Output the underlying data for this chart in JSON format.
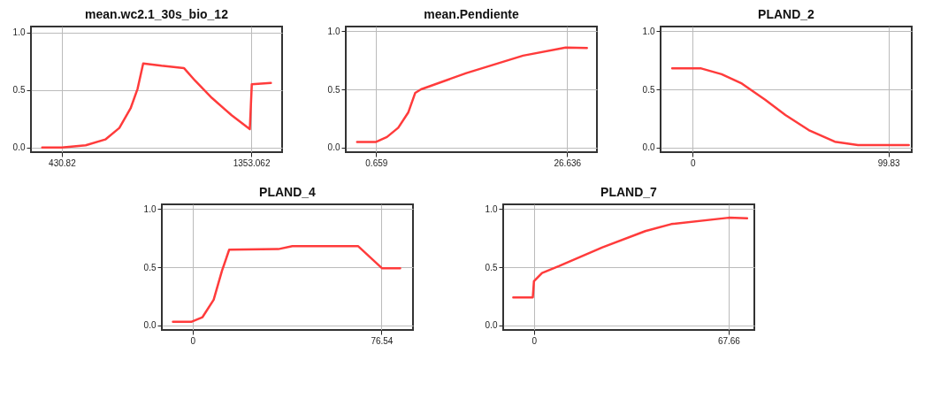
{
  "chart_data": [
    {
      "type": "line",
      "title": "mean.wc2.1_30s_bio_12",
      "x": [
        335.2,
        430.8,
        546.9,
        642.6,
        710.9,
        765.6,
        799.7,
        827.0,
        915.9,
        1025.2,
        1079.8,
        1161.8,
        1257.4,
        1346.2,
        1355.8,
        1448.7
      ],
      "series": [
        {
          "color": "#ff3b3b",
          "values": [
            0,
            0,
            0.02,
            0.07,
            0.17,
            0.34,
            0.51,
            0.73,
            0.71,
            0.69,
            0.58,
            0.43,
            0.28,
            0.16,
            0.55,
            0.56
          ]
        }
      ],
      "xlim": [
        280.5,
        1503.3
      ],
      "xticks": [
        430.82,
        1353.062
      ],
      "ylim": [
        -0.04,
        1.05
      ],
      "yticks": [
        {
          "value": 0,
          "label": "0.0"
        },
        {
          "value": 0.5,
          "label": "0.5"
        },
        {
          "value": 1,
          "label": "1.0"
        }
      ],
      "grid": true
    },
    {
      "type": "line",
      "title": "mean.Pendiente",
      "x": [
        -1.93,
        0.659,
        2.13,
        3.67,
        5.02,
        5.98,
        6.76,
        12.93,
        20.65,
        26.44,
        29.33
      ],
      "series": [
        {
          "color": "#ff3b3b",
          "values": [
            0.048,
            0.048,
            0.09,
            0.17,
            0.3,
            0.47,
            0.5,
            0.64,
            0.79,
            0.86,
            0.855
          ]
        }
      ],
      "xlim": [
        -3.47,
        30.69
      ],
      "xticks": [
        0.659,
        26.636
      ],
      "ylim": [
        -0.04,
        1.04
      ],
      "yticks": [
        {
          "value": 0,
          "label": "0.0"
        },
        {
          "value": 0.5,
          "label": "0.5"
        },
        {
          "value": 1,
          "label": "1.0"
        }
      ],
      "grid": true
    },
    {
      "type": "line",
      "title": "PLAND_2",
      "x": [
        -10.4,
        4.4,
        14.8,
        25.1,
        37.0,
        47.3,
        59.2,
        72.5,
        84.3,
        110.2
      ],
      "series": [
        {
          "color": "#ff3b3b",
          "values": [
            0.68,
            0.68,
            0.63,
            0.55,
            0.41,
            0.28,
            0.15,
            0.05,
            0.02,
            0.02
          ]
        }
      ],
      "xlim": [
        -16.3,
        111.7
      ],
      "xticks": [
        0,
        99.83
      ],
      "ylim": [
        -0.04,
        1.04
      ],
      "yticks": [
        {
          "value": 0,
          "label": "0.0"
        },
        {
          "value": 0.5,
          "label": "0.5"
        },
        {
          "value": 1,
          "label": "1.0"
        }
      ],
      "grid": true
    },
    {
      "type": "line",
      "title": "PLAND_4",
      "x": [
        -8.0,
        -0.6,
        3.98,
        8.5,
        11.9,
        14.8,
        34.7,
        40.4,
        67.1,
        76.8,
        84.1
      ],
      "series": [
        {
          "color": "#ff3b3b",
          "values": [
            0.03,
            0.03,
            0.07,
            0.22,
            0.47,
            0.65,
            0.655,
            0.68,
            0.68,
            0.49,
            0.49
          ]
        }
      ],
      "xlim": [
        -12.5,
        89.3
      ],
      "xticks": [
        0,
        76.54
      ],
      "ylim": [
        -0.04,
        1.04
      ],
      "yticks": [
        {
          "value": 0,
          "label": "0.0"
        },
        {
          "value": 0.5,
          "label": "0.5"
        },
        {
          "value": 1,
          "label": "1.0"
        }
      ],
      "grid": true
    },
    {
      "type": "line",
      "title": "PLAND_7",
      "x": [
        -7.2,
        -0.4,
        0,
        2.8,
        8.8,
        23.8,
        38.7,
        47.7,
        67.7,
        74.1
      ],
      "series": [
        {
          "color": "#ff3b3b",
          "values": [
            0.24,
            0.24,
            0.38,
            0.45,
            0.51,
            0.67,
            0.81,
            0.87,
            0.925,
            0.92
          ]
        }
      ],
      "xlim": [
        -10.7,
        76.6
      ],
      "xticks": [
        0,
        67.66
      ],
      "ylim": [
        -0.04,
        1.04
      ],
      "yticks": [
        {
          "value": 0,
          "label": "0.0"
        },
        {
          "value": 0.5,
          "label": "0.5"
        },
        {
          "value": 1,
          "label": "1.0"
        }
      ],
      "grid": true
    }
  ]
}
